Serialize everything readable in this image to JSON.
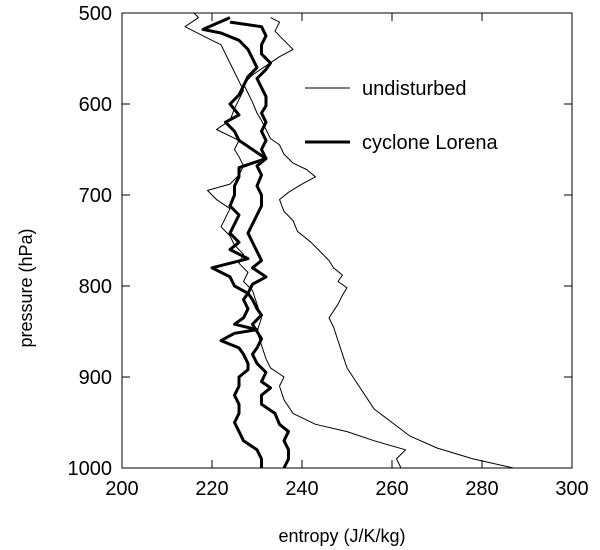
{
  "chart_data": {
    "type": "line",
    "xlabel": "entropy (J/K/kg)",
    "ylabel": "pressure (hPa)",
    "xlim": [
      200,
      300
    ],
    "ylim": [
      1000,
      500
    ],
    "y_axis_inverted": true,
    "x_ticks": [
      200,
      220,
      240,
      260,
      280,
      300
    ],
    "y_ticks": [
      500,
      600,
      700,
      800,
      900,
      1000
    ],
    "legend_position": "upper-right",
    "grid": false,
    "legend": [
      {
        "label": "undisturbed",
        "style": "thin"
      },
      {
        "label": "cyclone Lorena",
        "style": "thick"
      }
    ],
    "series": [
      {
        "legend_ref": "undisturbed",
        "style": "thin",
        "points": [
          [
            287,
            1000
          ],
          [
            278,
            990
          ],
          [
            270,
            978
          ],
          [
            264,
            965
          ],
          [
            260,
            950
          ],
          [
            256,
            935
          ],
          [
            254,
            920
          ],
          [
            252,
            905
          ],
          [
            250,
            890
          ],
          [
            249,
            875
          ],
          [
            248,
            860
          ],
          [
            247,
            845
          ],
          [
            246,
            835
          ],
          [
            248,
            820
          ],
          [
            249,
            810
          ],
          [
            250,
            802
          ],
          [
            248,
            795
          ],
          [
            249,
            788
          ],
          [
            247,
            780
          ],
          [
            246,
            772
          ],
          [
            244,
            762
          ],
          [
            242,
            752
          ],
          [
            239,
            740
          ],
          [
            238,
            728
          ],
          [
            236,
            718
          ],
          [
            235,
            705
          ],
          [
            237,
            697
          ],
          [
            240,
            688
          ],
          [
            243,
            680
          ],
          [
            241,
            672
          ],
          [
            238,
            665
          ],
          [
            236,
            655
          ],
          [
            235,
            645
          ],
          [
            233,
            638
          ],
          [
            232,
            628
          ],
          [
            231,
            618
          ],
          [
            230,
            610
          ],
          [
            229,
            598
          ],
          [
            228,
            588
          ],
          [
            227,
            578
          ],
          [
            229,
            568
          ],
          [
            232,
            558
          ],
          [
            235,
            548
          ],
          [
            238,
            540
          ],
          [
            236,
            530
          ],
          [
            234,
            520
          ],
          [
            235,
            510
          ],
          [
            233,
            505
          ]
        ]
      },
      {
        "legend_ref": "undisturbed",
        "style": "thin",
        "points": [
          [
            262,
            1000
          ],
          [
            261,
            990
          ],
          [
            263,
            980
          ],
          [
            256,
            970
          ],
          [
            250,
            960
          ],
          [
            243,
            952
          ],
          [
            238,
            940
          ],
          [
            236,
            925
          ],
          [
            235,
            910
          ],
          [
            236,
            900
          ],
          [
            233,
            890
          ],
          [
            232,
            880
          ],
          [
            231,
            865
          ],
          [
            230,
            850
          ],
          [
            231,
            835
          ],
          [
            230,
            820
          ],
          [
            229,
            805
          ],
          [
            227,
            795
          ],
          [
            228,
            785
          ],
          [
            226,
            775
          ],
          [
            227,
            765
          ],
          [
            225,
            755
          ],
          [
            224,
            745
          ],
          [
            222,
            735
          ],
          [
            223,
            725
          ],
          [
            224,
            715
          ],
          [
            221,
            705
          ],
          [
            219,
            695
          ],
          [
            224,
            688
          ],
          [
            226,
            678
          ],
          [
            227,
            668
          ],
          [
            226,
            658
          ],
          [
            225,
            650
          ],
          [
            226,
            640
          ],
          [
            221,
            628
          ],
          [
            224,
            618
          ],
          [
            225,
            605
          ],
          [
            226,
            595
          ],
          [
            227,
            585
          ],
          [
            226,
            575
          ],
          [
            225,
            565
          ],
          [
            224,
            555
          ],
          [
            223,
            545
          ],
          [
            222,
            535
          ],
          [
            218,
            525
          ],
          [
            214,
            515
          ],
          [
            217,
            505
          ],
          [
            216,
            500
          ]
        ]
      },
      {
        "legend_ref": "cyclone Lorena",
        "style": "thick",
        "points": [
          [
            236,
            1000
          ],
          [
            237,
            990
          ],
          [
            237,
            980
          ],
          [
            236,
            970
          ],
          [
            237,
            960
          ],
          [
            235,
            952
          ],
          [
            234,
            940
          ],
          [
            231,
            930
          ],
          [
            231,
            920
          ],
          [
            233,
            912
          ],
          [
            231,
            905
          ],
          [
            232,
            895
          ],
          [
            230,
            885
          ],
          [
            229,
            875
          ],
          [
            230,
            868
          ],
          [
            231,
            858
          ],
          [
            230,
            850
          ],
          [
            229,
            842
          ],
          [
            231,
            832
          ],
          [
            230,
            825
          ],
          [
            229,
            815
          ],
          [
            228,
            808
          ],
          [
            229,
            798
          ],
          [
            232,
            790
          ],
          [
            229,
            780
          ],
          [
            231,
            772
          ],
          [
            230,
            762
          ],
          [
            229,
            752
          ],
          [
            228,
            742
          ],
          [
            229,
            732
          ],
          [
            230,
            722
          ],
          [
            231,
            712
          ],
          [
            231,
            700
          ],
          [
            230,
            690
          ],
          [
            231,
            678
          ],
          [
            230,
            668
          ],
          [
            232,
            660
          ],
          [
            231,
            650
          ],
          [
            232,
            640
          ],
          [
            231,
            630
          ],
          [
            232,
            620
          ],
          [
            231,
            610
          ],
          [
            232,
            602
          ],
          [
            232,
            592
          ],
          [
            231,
            582
          ],
          [
            230,
            572
          ],
          [
            232,
            562
          ],
          [
            233,
            555
          ],
          [
            231,
            545
          ],
          [
            231,
            535
          ],
          [
            232,
            525
          ],
          [
            231,
            515
          ],
          [
            224,
            510
          ]
        ]
      },
      {
        "legend_ref": "cyclone Lorena",
        "style": "thick",
        "points": [
          [
            231,
            1000
          ],
          [
            231,
            990
          ],
          [
            230,
            980
          ],
          [
            227,
            970
          ],
          [
            226,
            960
          ],
          [
            225,
            950
          ],
          [
            226,
            940
          ],
          [
            226,
            930
          ],
          [
            225,
            920
          ],
          [
            226,
            910
          ],
          [
            226,
            900
          ],
          [
            228,
            892
          ],
          [
            228,
            885
          ],
          [
            227,
            875
          ],
          [
            226,
            868
          ],
          [
            222,
            860
          ],
          [
            225,
            852
          ],
          [
            230,
            848
          ],
          [
            225,
            842
          ],
          [
            227,
            835
          ],
          [
            228,
            825
          ],
          [
            227,
            815
          ],
          [
            228,
            808
          ],
          [
            225,
            800
          ],
          [
            224,
            790
          ],
          [
            220,
            780
          ],
          [
            228,
            770
          ],
          [
            224,
            760
          ],
          [
            226,
            752
          ],
          [
            224,
            742
          ],
          [
            225,
            732
          ],
          [
            226,
            722
          ],
          [
            224,
            712
          ],
          [
            225,
            700
          ],
          [
            225,
            690
          ],
          [
            226,
            680
          ],
          [
            226,
            670
          ],
          [
            229,
            665
          ],
          [
            232,
            660
          ],
          [
            229,
            650
          ],
          [
            226,
            640
          ],
          [
            225,
            630
          ],
          [
            223,
            620
          ],
          [
            226,
            612
          ],
          [
            224,
            600
          ],
          [
            226,
            590
          ],
          [
            227,
            580
          ],
          [
            228,
            570
          ],
          [
            230,
            560
          ],
          [
            229,
            550
          ],
          [
            228,
            540
          ],
          [
            226,
            530
          ],
          [
            222,
            522
          ],
          [
            218,
            518
          ],
          [
            224,
            505
          ]
        ]
      }
    ]
  }
}
